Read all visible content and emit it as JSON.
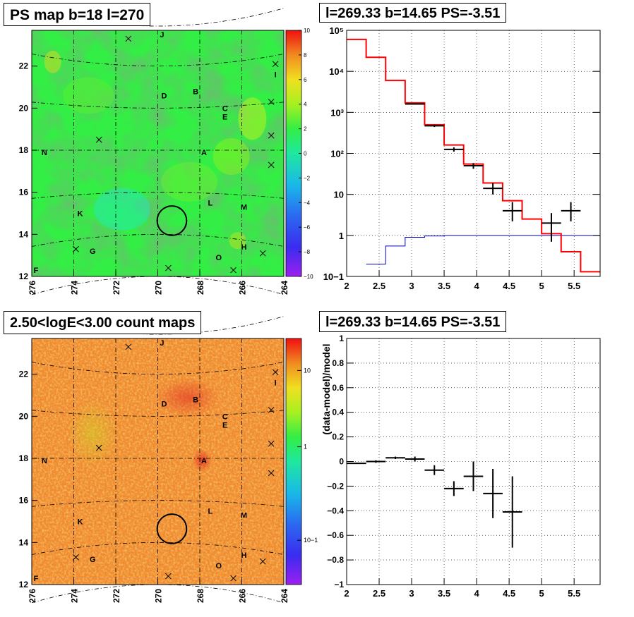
{
  "panels": {
    "ps_map_title": "PS map b=18 l=270",
    "count_map_title": "2.50<logE<3.00 count maps",
    "spectrum_title": "l=269.33 b=14.65 PS=-3.51",
    "residual_title": "l=269.33 b=14.65 PS=-3.51"
  },
  "colors": {
    "data": "#000000",
    "model": "#ff0000",
    "background_model": "#0000cc",
    "grid": "#000000",
    "map_green": "#33ee44",
    "map_orange": "#f08a30"
  },
  "chart_data": [
    {
      "type": "heatmap",
      "title": "PS map b=18 l=270",
      "x_tick_labels": [
        "276",
        "274",
        "272",
        "270",
        "268",
        "266",
        "264"
      ],
      "x_ticks": [
        276,
        274,
        272,
        270,
        268,
        266,
        264
      ],
      "y_tick_labels": [
        "12",
        "14",
        "16",
        "18",
        "20",
        "22"
      ],
      "y_ticks": [
        12,
        14,
        16,
        18,
        20,
        22
      ],
      "xlim": [
        276,
        264
      ],
      "ylim": [
        12,
        23.7
      ],
      "colorbar": {
        "min": -10,
        "max": 10,
        "ticks": [
          10,
          8,
          6,
          4,
          2,
          0,
          -2,
          -4,
          -6,
          -8,
          -10
        ],
        "tick_labels": [
          "10",
          "8",
          "6",
          "4",
          "2",
          "0",
          "−2",
          "−4",
          "−6",
          "−8",
          "−10"
        ]
      },
      "field_value": 1,
      "sources": [
        {
          "label": "J",
          "l": 269.8,
          "b": 23.5
        },
        {
          "label": "I",
          "l": 264.4,
          "b": 21.6
        },
        {
          "label": "B",
          "l": 268.2,
          "b": 20.8
        },
        {
          "label": "D",
          "l": 269.7,
          "b": 20.6
        },
        {
          "label": "C",
          "l": 266.8,
          "b": 20.0
        },
        {
          "label": "E",
          "l": 266.8,
          "b": 19.6
        },
        {
          "label": "N",
          "l": 275.4,
          "b": 17.9
        },
        {
          "label": "A",
          "l": 267.8,
          "b": 17.9
        },
        {
          "label": "L",
          "l": 267.5,
          "b": 15.5
        },
        {
          "label": "M",
          "l": 265.9,
          "b": 15.3
        },
        {
          "label": "K",
          "l": 273.7,
          "b": 15.0
        },
        {
          "label": "G",
          "l": 273.1,
          "b": 13.2
        },
        {
          "label": "H",
          "l": 265.9,
          "b": 13.4
        },
        {
          "label": "O",
          "l": 267.1,
          "b": 12.9
        },
        {
          "label": "F",
          "l": 275.8,
          "b": 12.3
        }
      ],
      "crosses": [
        {
          "l": 271.4,
          "b": 23.3
        },
        {
          "l": 264.4,
          "b": 22.1
        },
        {
          "l": 264.6,
          "b": 20.3
        },
        {
          "l": 264.6,
          "b": 18.7
        },
        {
          "l": 272.8,
          "b": 18.5
        },
        {
          "l": 264.6,
          "b": 17.3
        },
        {
          "l": 273.9,
          "b": 13.3
        },
        {
          "l": 265.0,
          "b": 13.1
        },
        {
          "l": 269.5,
          "b": 12.4
        },
        {
          "l": 266.4,
          "b": 12.3
        }
      ],
      "circle": {
        "l": 269.33,
        "b": 14.65,
        "r": 0.5
      }
    },
    {
      "type": "line",
      "title": "l=269.33 b=14.65 PS=-3.51",
      "xlim": [
        2,
        5.9
      ],
      "ylim": [
        0.1,
        100000
      ],
      "log_y": true,
      "grid": true,
      "x_ticks": [
        2,
        2.5,
        3,
        3.5,
        4,
        4.5,
        5,
        5.5
      ],
      "x_tick_labels": [
        "2",
        "2.5",
        "3",
        "3.5",
        "4",
        "4.5",
        "5",
        "5.5"
      ],
      "y_ticks": [
        0.1,
        1,
        10,
        100,
        1000,
        10000,
        100000
      ],
      "y_tick_labels": [
        "10−1",
        "1",
        "10",
        "10²",
        "10³",
        "10⁴",
        "10⁵"
      ],
      "model_edges": [
        2.0,
        2.3,
        2.6,
        2.9,
        3.2,
        3.5,
        3.8,
        4.1,
        4.4,
        4.7,
        5.0,
        5.3,
        5.6,
        5.9
      ],
      "model_values": [
        60000,
        22000,
        6000,
        1700,
        500,
        160,
        55,
        19,
        7,
        2.5,
        1.1,
        0.4,
        0.13
      ],
      "bkg_edges": [
        2.3,
        2.6,
        2.9,
        3.2,
        3.5,
        5.9
      ],
      "bkg_values": [
        0.2,
        0.55,
        0.9,
        0.97,
        1.0
      ],
      "points": [
        {
          "x": 3.05,
          "xerr": 0.15,
          "y": 1600,
          "ylo": 1550,
          "yhi": 1650
        },
        {
          "x": 3.35,
          "xerr": 0.15,
          "y": 470,
          "ylo": 440,
          "yhi": 500
        },
        {
          "x": 3.65,
          "xerr": 0.15,
          "y": 125,
          "ylo": 110,
          "yhi": 140
        },
        {
          "x": 3.95,
          "xerr": 0.15,
          "y": 50,
          "ylo": 42,
          "yhi": 58
        },
        {
          "x": 4.25,
          "xerr": 0.15,
          "y": 14,
          "ylo": 10,
          "yhi": 19
        },
        {
          "x": 4.55,
          "xerr": 0.15,
          "y": 4,
          "ylo": 2.2,
          "yhi": 6.5
        },
        {
          "x": 5.15,
          "xerr": 0.15,
          "y": 2,
          "ylo": 0.7,
          "yhi": 3.5
        },
        {
          "x": 5.45,
          "xerr": 0.15,
          "y": 4,
          "ylo": 2.2,
          "yhi": 6.5
        }
      ]
    },
    {
      "type": "heatmap",
      "title": "2.50<logE<3.00 count maps",
      "x_tick_labels": [
        "276",
        "274",
        "272",
        "270",
        "268",
        "266",
        "264"
      ],
      "x_ticks": [
        276,
        274,
        272,
        270,
        268,
        266,
        264
      ],
      "y_tick_labels": [
        "12",
        "14",
        "16",
        "18",
        "20",
        "22"
      ],
      "y_ticks": [
        12,
        14,
        16,
        18,
        20,
        22
      ],
      "xlim": [
        276,
        264
      ],
      "ylim": [
        12,
        23.7
      ],
      "colorbar": {
        "log": true,
        "ticks": [
          10,
          1,
          0.1
        ],
        "tick_labels": [
          "10",
          "1",
          "10−1"
        ]
      },
      "field_value": 3
    },
    {
      "type": "scatter",
      "title": "l=269.33 b=14.65 PS=-3.51",
      "ylabel": "(data-model)/model",
      "xlim": [
        2,
        5.9
      ],
      "ylim": [
        -1,
        1
      ],
      "grid": true,
      "x_ticks": [
        2,
        2.5,
        3,
        3.5,
        4,
        4.5,
        5,
        5.5
      ],
      "x_tick_labels": [
        "2",
        "2.5",
        "3",
        "3.5",
        "4",
        "4.5",
        "5",
        "5.5"
      ],
      "y_ticks": [
        1,
        0.8,
        0.6,
        0.4,
        0.2,
        0,
        -0.2,
        -0.4,
        -0.6,
        -0.8,
        -1
      ],
      "y_tick_labels": [
        "1",
        "0.8",
        "0.6",
        "0.4",
        "0.2",
        "0",
        "−0.2",
        "−0.4",
        "−0.6",
        "−0.8",
        "−1"
      ],
      "points": [
        {
          "x": 2.15,
          "xerr": 0.15,
          "y": -0.015,
          "err": 0.005
        },
        {
          "x": 2.45,
          "xerr": 0.15,
          "y": 0.0,
          "err": 0.01
        },
        {
          "x": 2.75,
          "xerr": 0.15,
          "y": 0.03,
          "err": 0.01
        },
        {
          "x": 3.05,
          "xerr": 0.15,
          "y": 0.02,
          "err": 0.02
        },
        {
          "x": 3.35,
          "xerr": 0.15,
          "y": -0.07,
          "err": 0.04
        },
        {
          "x": 3.65,
          "xerr": 0.15,
          "y": -0.22,
          "err": 0.06
        },
        {
          "x": 3.95,
          "xerr": 0.15,
          "y": -0.12,
          "err": 0.12
        },
        {
          "x": 4.25,
          "xerr": 0.15,
          "y": -0.26,
          "err": 0.2
        },
        {
          "x": 4.55,
          "xerr": 0.15,
          "y": -0.41,
          "err": 0.29
        }
      ]
    }
  ]
}
